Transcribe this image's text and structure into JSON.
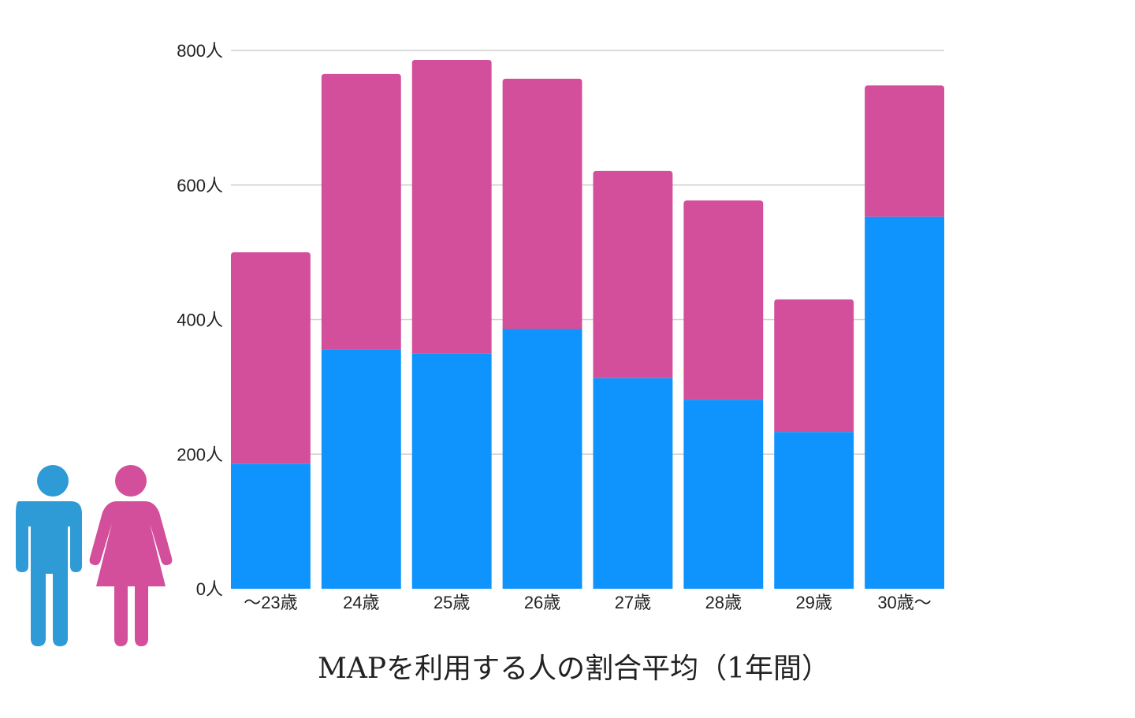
{
  "chart_data": {
    "type": "bar",
    "stacked": true,
    "title": "MAPを利用する人の割合平均（1年間）",
    "xlabel": "",
    "ylabel": "",
    "ylim": [
      0,
      800
    ],
    "yticks": [
      0,
      200,
      400,
      600,
      800
    ],
    "ytick_labels": [
      "0人",
      "200人",
      "400人",
      "600人",
      "800人"
    ],
    "grid": true,
    "categories": [
      "〜23歳",
      "24歳",
      "25歳",
      "26歳",
      "27歳",
      "28歳",
      "29歳",
      "30歳〜"
    ],
    "series": [
      {
        "name": "男性",
        "color": "#0F94FD",
        "values": [
          186,
          356,
          350,
          386,
          313,
          281,
          233,
          553
        ]
      },
      {
        "name": "女性",
        "color": "#D34F9B",
        "values": [
          314,
          409,
          436,
          372,
          308,
          296,
          197,
          195
        ]
      }
    ],
    "legend_icons": [
      {
        "icon": "male-person-icon",
        "color": "#2E9AD6"
      },
      {
        "icon": "female-person-icon",
        "color": "#D34F9B"
      }
    ]
  }
}
